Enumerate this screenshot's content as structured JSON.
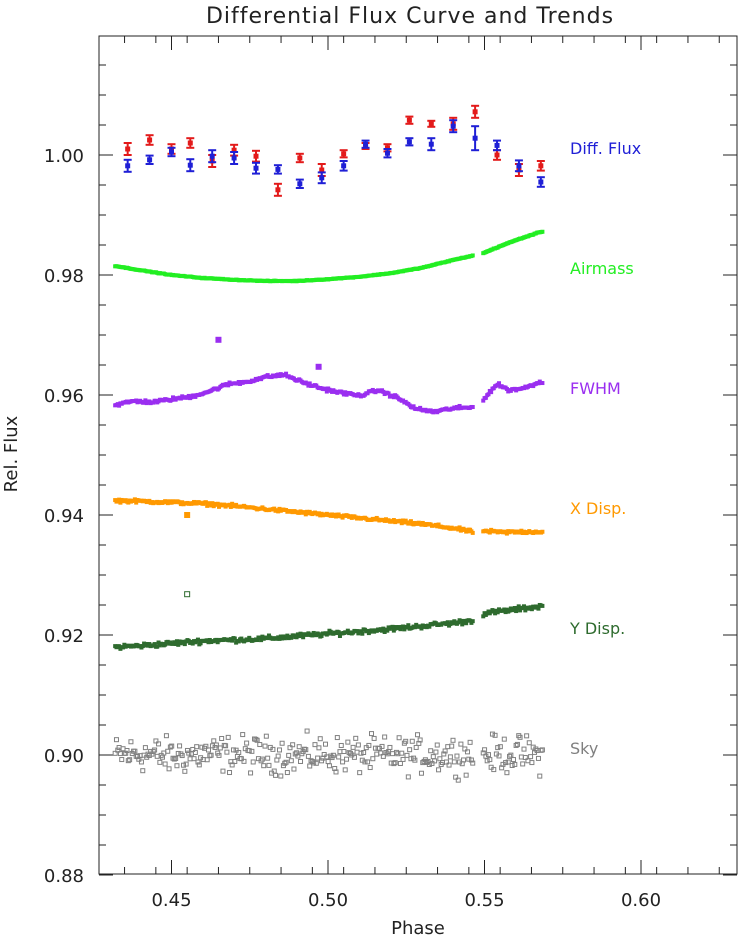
{
  "chart_data": {
    "type": "scatter",
    "title": "Differential Flux Curve and Trends",
    "xlabel": "Phase",
    "ylabel": "Rel. Flux",
    "xlim": [
      0.42,
      0.64
    ],
    "ylim": [
      0.88,
      1.0225
    ],
    "xticks": [
      0.45,
      0.5,
      0.55,
      0.6
    ],
    "xtick_labels": [
      "0.45",
      "0.50",
      "0.55",
      "0.60"
    ],
    "yticks": [
      0.88,
      0.9,
      0.92,
      0.94,
      0.96,
      0.98,
      1.0
    ],
    "ytick_labels": [
      "0.88",
      "0.90",
      "0.92",
      "0.94",
      "0.96",
      "0.98",
      "1.00"
    ],
    "grid": false,
    "colors": {
      "blue": "#1f1fd6",
      "red": "#e31a1a",
      "airmass": "#22ee22",
      "fwhm": "#9a2ef0",
      "xdisp": "#ff9900",
      "ydisp": "#2e6b2e",
      "sky": "#808080"
    },
    "labels": {
      "diff_flux": "Diff. Flux",
      "airmass": "Airmass",
      "fwhm": "FWHM",
      "xdisp": "X Disp.",
      "ydisp": "Y Disp.",
      "sky": "Sky"
    },
    "diff_flux_blue": {
      "x": [
        0.436,
        0.443,
        0.45,
        0.456,
        0.463,
        0.47,
        0.477,
        0.484,
        0.491,
        0.498,
        0.505,
        0.512,
        0.519,
        0.526,
        0.533,
        0.54,
        0.547,
        0.554,
        0.561,
        0.568
      ],
      "y": [
        0.9982,
        0.9992,
        1.0005,
        0.9983,
        0.9998,
        0.9995,
        0.9978,
        0.9976,
        0.9952,
        0.9962,
        0.9982,
        1.0018,
        1.0003,
        1.0022,
        1.0018,
        1.0048,
        1.0028,
        1.0016,
        0.9982,
        0.9955
      ],
      "err": [
        0.001,
        0.0007,
        0.0007,
        0.001,
        0.001,
        0.001,
        0.0009,
        0.0007,
        0.0007,
        0.0009,
        0.0008,
        0.0006,
        0.0007,
        0.0006,
        0.001,
        0.001,
        0.002,
        0.0008,
        0.0009,
        0.0008
      ]
    },
    "diff_flux_red": {
      "x": [
        0.436,
        0.443,
        0.45,
        0.456,
        0.463,
        0.47,
        0.477,
        0.484,
        0.491,
        0.498,
        0.505,
        0.512,
        0.519,
        0.526,
        0.533,
        0.54,
        0.547,
        0.554,
        0.561,
        0.568
      ],
      "y": [
        1.001,
        1.0025,
        1.001,
        1.002,
        0.999,
        1.0008,
        0.9998,
        0.9942,
        0.9995,
        0.9975,
        1.0002,
        1.0015,
        1.0012,
        1.0058,
        1.0052,
        1.0052,
        1.0072,
        1.0,
        0.9975,
        0.9982
      ],
      "err": [
        0.001,
        0.0008,
        0.0008,
        0.0008,
        0.001,
        0.0009,
        0.0009,
        0.001,
        0.0007,
        0.001,
        0.0006,
        0.0005,
        0.0006,
        0.0006,
        0.0005,
        0.001,
        0.001,
        0.0008,
        0.001,
        0.0008
      ]
    },
    "airmass_pts": {
      "x": [
        0.432,
        0.44,
        0.45,
        0.46,
        0.47,
        0.48,
        0.49,
        0.5,
        0.51,
        0.52,
        0.53,
        0.54,
        0.546,
        0.548,
        0.555,
        0.56,
        0.568
      ],
      "y": [
        0.9815,
        0.9808,
        0.98,
        0.9795,
        0.9792,
        0.979,
        0.979,
        0.9793,
        0.9797,
        0.9803,
        0.9812,
        0.9825,
        0.9832,
        0.9833,
        0.9848,
        0.9858,
        0.9872
      ]
    },
    "fwhm_pts": {
      "x": [
        0.432,
        0.438,
        0.444,
        0.45,
        0.456,
        0.462,
        0.468,
        0.474,
        0.48,
        0.486,
        0.492,
        0.498,
        0.504,
        0.51,
        0.516,
        0.522,
        0.528,
        0.534,
        0.54,
        0.546,
        0.55,
        0.554,
        0.558,
        0.563,
        0.568
      ],
      "y": [
        0.9583,
        0.959,
        0.9588,
        0.9593,
        0.9597,
        0.9606,
        0.9618,
        0.9622,
        0.963,
        0.9634,
        0.9621,
        0.9611,
        0.9604,
        0.9599,
        0.9608,
        0.9596,
        0.9577,
        0.9572,
        0.9578,
        0.9579,
        0.9595,
        0.9618,
        0.9608,
        0.9612,
        0.9622
      ]
    },
    "xdisp_pts": {
      "x": [
        0.432,
        0.44,
        0.45,
        0.46,
        0.47,
        0.48,
        0.49,
        0.5,
        0.51,
        0.52,
        0.53,
        0.54,
        0.546,
        0.55,
        0.556,
        0.562,
        0.568
      ],
      "y": [
        0.9424,
        0.9423,
        0.9421,
        0.9419,
        0.9415,
        0.941,
        0.9405,
        0.94,
        0.9395,
        0.939,
        0.9385,
        0.9378,
        0.9372,
        0.9373,
        0.9371,
        0.9372,
        0.9372
      ]
    },
    "ydisp_pts": {
      "x": [
        0.432,
        0.44,
        0.45,
        0.46,
        0.47,
        0.48,
        0.49,
        0.5,
        0.51,
        0.52,
        0.53,
        0.54,
        0.546,
        0.55,
        0.556,
        0.562,
        0.568
      ],
      "y": [
        0.918,
        0.9182,
        0.9186,
        0.919,
        0.9192,
        0.9194,
        0.9198,
        0.9202,
        0.9206,
        0.921,
        0.9215,
        0.922,
        0.9224,
        0.9236,
        0.924,
        0.9244,
        0.9248
      ]
    },
    "sky_pts": {
      "x": [
        0.432,
        0.44,
        0.45,
        0.46,
        0.47,
        0.48,
        0.49,
        0.5,
        0.51,
        0.52,
        0.53,
        0.54,
        0.546,
        0.55,
        0.56,
        0.568
      ],
      "y": [
        0.9,
        0.9002,
        0.8998,
        0.9001,
        0.9002,
        0.9,
        0.8999,
        0.9001,
        0.9,
        0.8999,
        0.9,
        0.9001,
        0.9,
        0.9,
        0.9002,
        0.8999
      ]
    },
    "outliers": [
      {
        "series": "fwhm",
        "x": 0.465,
        "y": 0.9692
      },
      {
        "series": "fwhm",
        "x": 0.497,
        "y": 0.9647
      },
      {
        "series": "xdisp",
        "x": 0.455,
        "y": 0.94
      },
      {
        "series": "ydisp",
        "x": 0.455,
        "y": 0.9268
      }
    ]
  }
}
